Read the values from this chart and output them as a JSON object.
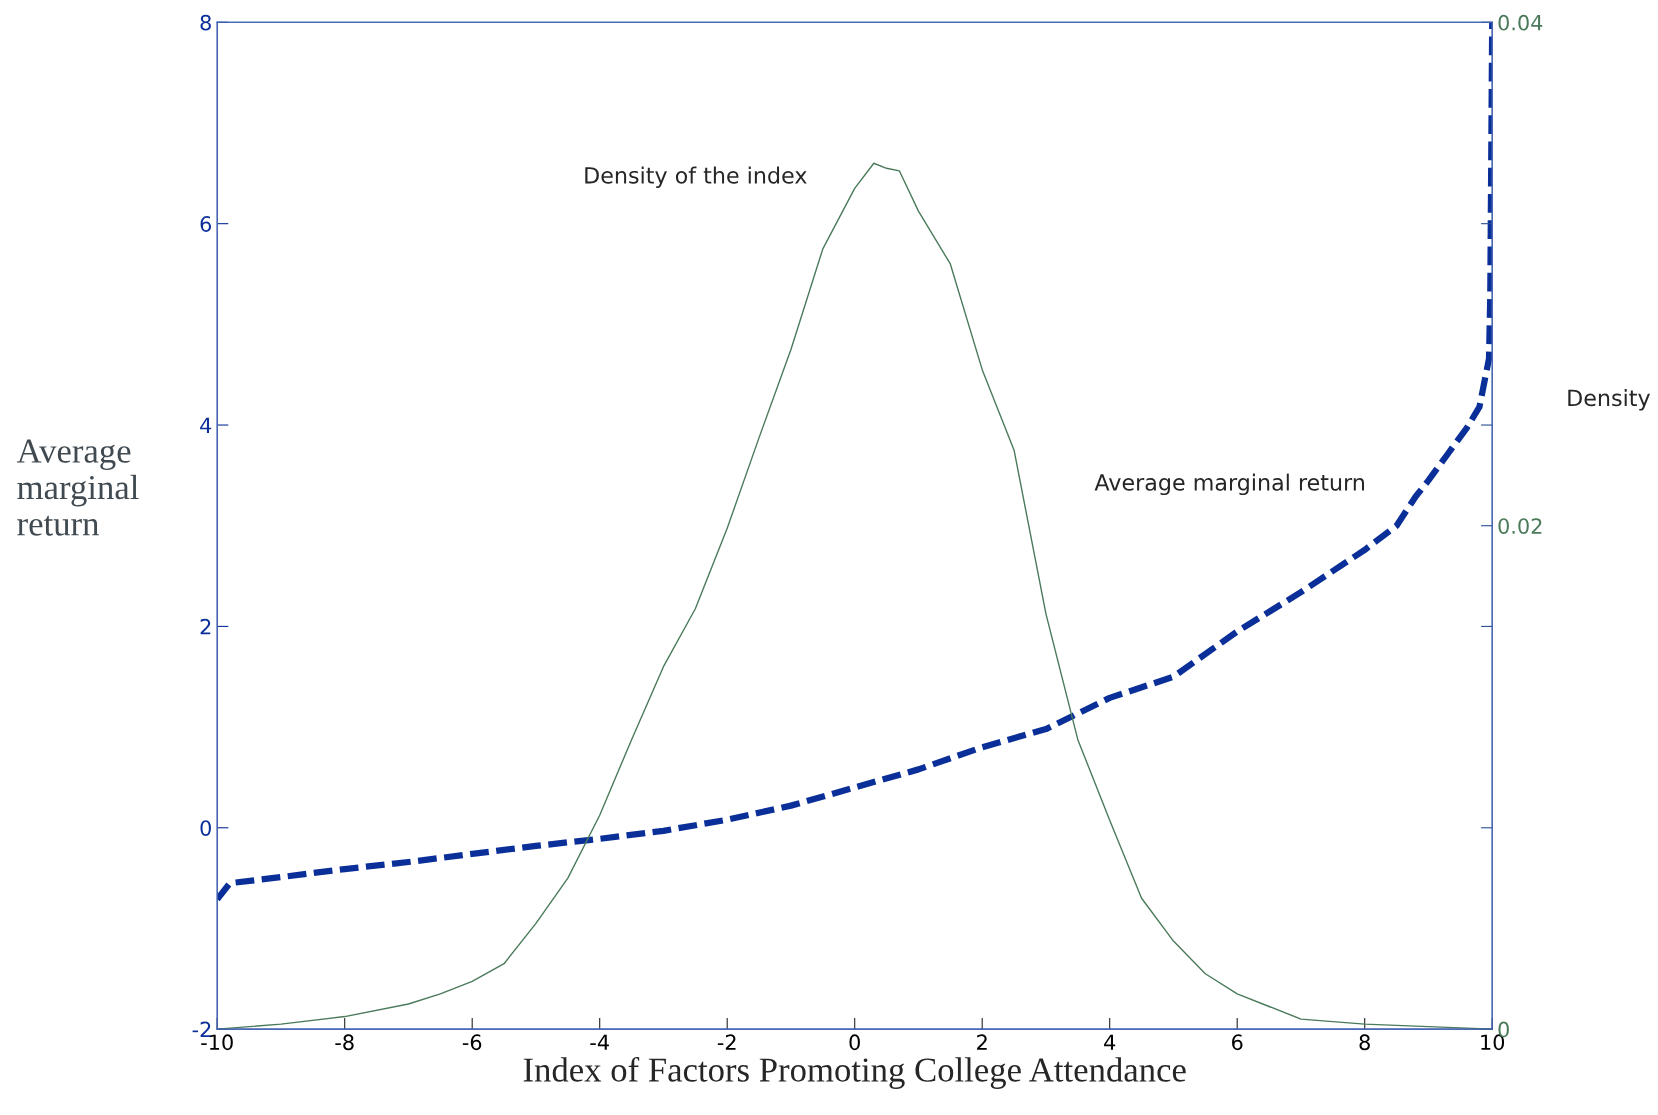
{
  "chart_data": {
    "type": "line",
    "xlabel": "Index of Factors Promoting College Attendance",
    "ylabel": "Average\nmarginal\nreturn",
    "y2label": "Density",
    "xlim": [
      -10,
      10
    ],
    "xticks": [
      -10,
      -8,
      -6,
      -4,
      -2,
      0,
      2,
      4,
      6,
      8,
      10
    ],
    "ylim": [
      -2,
      8
    ],
    "yticks": [
      -2,
      0,
      2,
      4,
      6,
      8
    ],
    "y2lim": [
      0,
      0.04
    ],
    "y2ticks": [
      0,
      {
        "value": 0.008,
        "label": null
      },
      {
        "value": 0.016,
        "label": null
      },
      0.02,
      {
        "value": 0.024,
        "label": null
      },
      {
        "value": 0.032,
        "label": null
      },
      0.04
    ],
    "grid": false,
    "annotations": [
      "Density of the index",
      "Average marginal return"
    ],
    "series": [
      {
        "color": "#0a2f99",
        "line_style": "dashed",
        "x": [
          -10,
          -9.8,
          -9,
          -8,
          -7,
          -6,
          -5,
          -4,
          -3,
          -2,
          -1,
          0,
          1,
          2,
          3,
          4,
          5,
          6,
          7,
          8,
          8.5,
          8.8,
          9,
          9.3,
          9.6,
          9.8,
          9.95,
          9.97,
          10
        ],
        "values": [
          -0.71,
          -0.55,
          -0.49,
          -0.41,
          -0.34,
          -0.26,
          -0.18,
          -0.11,
          -0.03,
          0.08,
          0.22,
          0.4,
          0.58,
          0.8,
          0.98,
          1.29,
          1.5,
          1.95,
          2.34,
          2.76,
          3.0,
          3.29,
          3.45,
          3.71,
          3.97,
          4.18,
          4.66,
          5.29,
          8
        ]
      },
      {
        "color": "#4a7a5a",
        "line_style": "solid",
        "axis": "y2",
        "x": [
          -10,
          -9,
          -8,
          -7,
          -6.5,
          -6,
          -5.5,
          -5,
          -4.5,
          -4,
          -3.5,
          -3,
          -2.5,
          -2,
          -1.5,
          -1,
          -0.5,
          0,
          0.3,
          0.5,
          0.7,
          1,
          1.5,
          2,
          2.5,
          3,
          3.5,
          4,
          4.5,
          5,
          5.5,
          6,
          6.5,
          7,
          8,
          9,
          10
        ],
        "values": [
          0.0,
          0.0002,
          0.0005,
          0.001,
          0.0014,
          0.0019,
          0.0026,
          0.0042,
          0.006,
          0.0085,
          0.0115,
          0.0144,
          0.0167,
          0.0199,
          0.0235,
          0.027,
          0.031,
          0.0334,
          0.0344,
          0.0342,
          0.0341,
          0.0325,
          0.0304,
          0.0262,
          0.023,
          0.0165,
          0.0115,
          0.0083,
          0.0052,
          0.0035,
          0.0022,
          0.0014,
          0.0009,
          0.0004,
          0.0002,
          0.0001,
          0.0
        ]
      }
    ]
  }
}
